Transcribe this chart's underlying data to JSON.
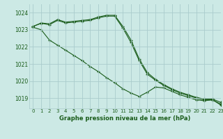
{
  "title": "Graphe pression niveau de la mer (hPa)",
  "background_color": "#cce9e5",
  "grid_color": "#aacccc",
  "line_color": "#1a5c1a",
  "marker": "+",
  "xlim": [
    -0.5,
    23
  ],
  "ylim": [
    1018.4,
    1024.5
  ],
  "yticks": [
    1019,
    1020,
    1021,
    1022,
    1023,
    1024
  ],
  "xticks": [
    0,
    1,
    2,
    3,
    4,
    5,
    6,
    7,
    8,
    9,
    10,
    11,
    12,
    13,
    14,
    15,
    16,
    17,
    18,
    19,
    20,
    21,
    22,
    23
  ],
  "series": [
    [
      1023.2,
      1023.4,
      1023.35,
      1023.6,
      1023.45,
      1023.5,
      1023.55,
      1023.6,
      1023.75,
      1023.85,
      1023.85,
      1023.2,
      1022.4,
      1021.3,
      1020.5,
      1020.1,
      1019.8,
      1019.55,
      1019.35,
      1019.2,
      1019.05,
      1018.95,
      1018.95,
      1018.75
    ],
    [
      1023.2,
      1023.38,
      1023.3,
      1023.55,
      1023.4,
      1023.45,
      1023.5,
      1023.55,
      1023.7,
      1023.8,
      1023.8,
      1023.1,
      1022.25,
      1021.2,
      1020.4,
      1020.05,
      1019.75,
      1019.5,
      1019.3,
      1019.15,
      1019.0,
      1018.9,
      1018.9,
      1018.65
    ],
    [
      1023.15,
      1023.0,
      1022.4,
      1022.1,
      1021.8,
      1021.5,
      1021.2,
      1020.85,
      1020.55,
      1020.2,
      1019.9,
      1019.55,
      1019.3,
      1019.1,
      1019.35,
      1019.65,
      1019.6,
      1019.4,
      1019.2,
      1019.05,
      1018.9,
      1018.85,
      1018.9,
      1018.6
    ]
  ]
}
